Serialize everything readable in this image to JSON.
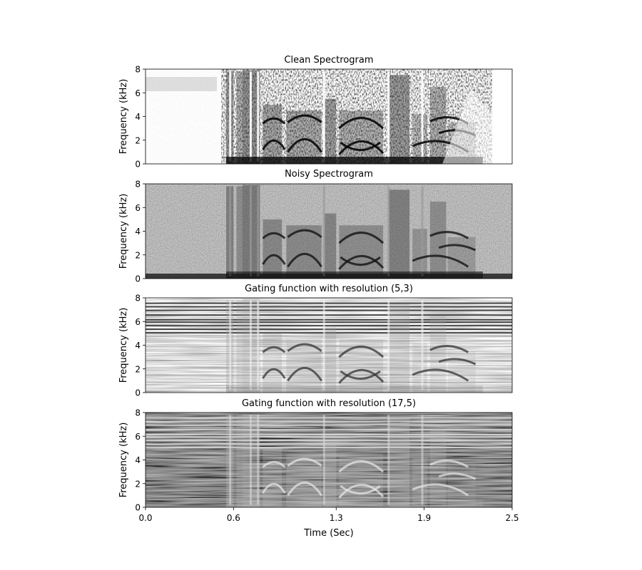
{
  "chart_data": [
    {
      "type": "heatmap",
      "title": "Clean Spectrogram",
      "xlabel": "",
      "ylabel": "Frequency (kHz)",
      "xlim": [
        0,
        2.5
      ],
      "ylim": [
        0,
        8
      ],
      "yticks": [
        "0",
        "2",
        "4",
        "6",
        "8"
      ],
      "xticks": [],
      "colormap": "grayscale (dark = high energy)",
      "background_noise": "none",
      "energy_map": "speech energy between ~0.55 and ~2.3 sec, formant bands 0–4 kHz, fricatives up to 8 kHz"
    },
    {
      "type": "heatmap",
      "title": "Noisy Spectrogram",
      "xlabel": "",
      "ylabel": "Frequency (kHz)",
      "xlim": [
        0,
        2.5
      ],
      "ylim": [
        0,
        8
      ],
      "yticks": [
        "0",
        "2",
        "4",
        "6",
        "8"
      ],
      "xticks": [],
      "colormap": "grayscale (dark = high energy)",
      "background_noise": "broadband mid-gray noise across full time and frequency range",
      "energy_map": "same speech pattern as clean, partly masked by noise"
    },
    {
      "type": "heatmap",
      "title": "Gating function with resolution (5,3)",
      "xlabel": "",
      "ylabel": "Frequency (kHz)",
      "xlim": [
        0,
        2.5
      ],
      "ylim": [
        0,
        8
      ],
      "yticks": [
        "0",
        "2",
        "4",
        "6",
        "8"
      ],
      "xticks": [],
      "colormap": "grayscale",
      "background_noise": "light background with horizontal striations, strong dark bands above 5 kHz",
      "energy_map": "speech formant structure visible 0–5 kHz"
    },
    {
      "type": "heatmap",
      "title": "Gating function with resolution (17,5)",
      "xlabel": "Time (Sec)",
      "ylabel": "Frequency (kHz)",
      "xlim": [
        0,
        2.5
      ],
      "ylim": [
        0,
        8
      ],
      "yticks": [
        "0",
        "2",
        "4",
        "6",
        "8"
      ],
      "xticks": [
        "0.0",
        "0.6",
        "1.3",
        "1.9",
        "2.5"
      ],
      "colormap": "grayscale",
      "background_noise": "dark background with heavy horizontal striations",
      "energy_map": "speech formant structure appears lighter than background"
    }
  ]
}
